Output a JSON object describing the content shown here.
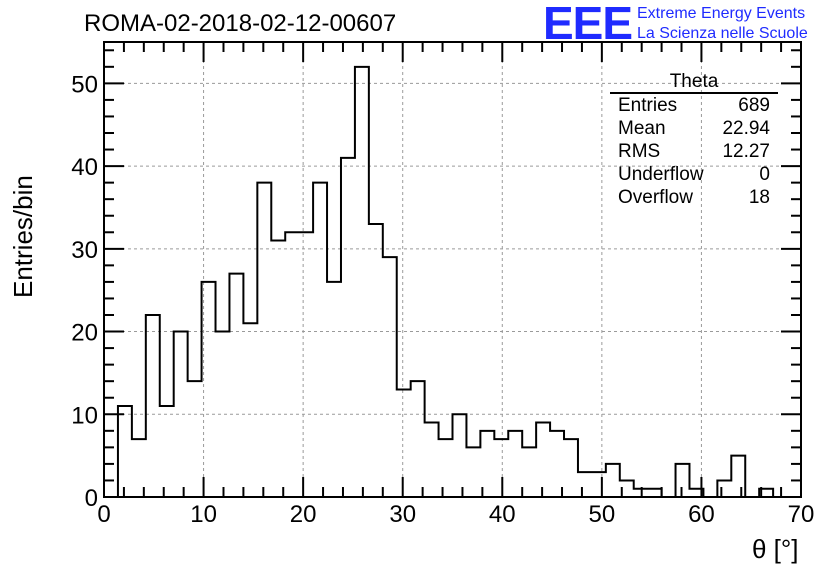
{
  "title": "ROMA-02-2018-02-12-00607",
  "logo": {
    "letters": "EEE",
    "line1": "Extreme Energy Events",
    "line2": "La Scienza nelle Scuole",
    "color": "#1f2bff"
  },
  "stats": {
    "title": "Theta",
    "rows": [
      {
        "label": "Entries",
        "value": "689"
      },
      {
        "label": "Mean",
        "value": "22.94"
      },
      {
        "label": "RMS",
        "value": "12.27"
      },
      {
        "label": "Underflow",
        "value": "0"
      },
      {
        "label": "Overflow",
        "value": "18"
      }
    ]
  },
  "chart_data": {
    "type": "bar",
    "style": "step-histogram",
    "xlabel": "θ [°]",
    "ylabel": "Entries/bin",
    "xlim": [
      0,
      70
    ],
    "ylim": [
      0,
      55
    ],
    "bin_width": 1.4,
    "bin_start": 0,
    "values": [
      0,
      11,
      7,
      22,
      11,
      20,
      14,
      26,
      20,
      27,
      21,
      38,
      31,
      32,
      32,
      38,
      26,
      41,
      52,
      33,
      29,
      13,
      14,
      9,
      7,
      10,
      6,
      8,
      7,
      8,
      6,
      9,
      8,
      7,
      3,
      3,
      4,
      2,
      1,
      1,
      0,
      4,
      1,
      0,
      2,
      5,
      0,
      1,
      0,
      0
    ],
    "xticks": [
      0,
      10,
      20,
      30,
      40,
      50,
      60,
      70
    ],
    "yticks": [
      0,
      10,
      20,
      30,
      40,
      50
    ],
    "grid": true,
    "line_color": "#000000",
    "grid_color": "#9a9a9a"
  }
}
